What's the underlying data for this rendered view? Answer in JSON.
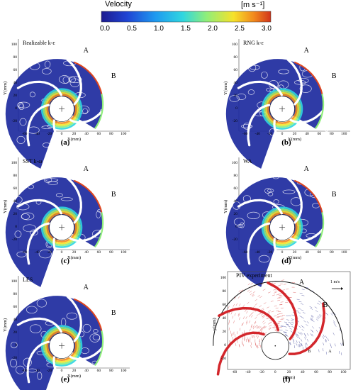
{
  "colorbar": {
    "title": "Velocity",
    "unit": "[m s⁻¹]",
    "ticks": [
      "0.0",
      "0.5",
      "1.0",
      "1.5",
      "2.0",
      "2.5",
      "3.0"
    ],
    "colors": [
      "#1d1b8f",
      "#1f43d3",
      "#1f9af0",
      "#2fd6e0",
      "#8fee7a",
      "#f6e22a",
      "#f2891d",
      "#d1341b"
    ]
  },
  "panels": [
    {
      "id": "a",
      "label": "(a)",
      "title": "Realizable k-ε",
      "mark_a": "A",
      "mark_b": "B"
    },
    {
      "id": "b",
      "label": "(b)",
      "title": "RNG k-ε",
      "mark_a": "A",
      "mark_b": "B"
    },
    {
      "id": "c",
      "label": "(c)",
      "title": "SST k-ω",
      "mark_a": "A",
      "mark_b": "B"
    },
    {
      "id": "d",
      "label": "(d)",
      "title": "WA",
      "mark_a": "A",
      "mark_b": "B"
    },
    {
      "id": "e",
      "label": "(e)",
      "title": "LES",
      "mark_a": "A",
      "mark_b": "B"
    },
    {
      "id": "f",
      "label": "(f)",
      "title": "PIV experiment",
      "mark_a": "A",
      "mark_b": "B",
      "mark_b_small": "B",
      "mark_a_small": "A",
      "scale": "1 m/s"
    }
  ],
  "axes": {
    "xlabel": "X(mm)",
    "ylabel": "Y(mm)",
    "xlabel_f": "x(mm)",
    "ylabel_f": "y(mm)",
    "xticks": [
      "-60",
      "-40",
      "-20",
      "0",
      "20",
      "40",
      "60",
      "80",
      "100"
    ],
    "yticks": [
      "100",
      "80",
      "60",
      "40",
      "20",
      "0",
      "-20"
    ]
  }
}
